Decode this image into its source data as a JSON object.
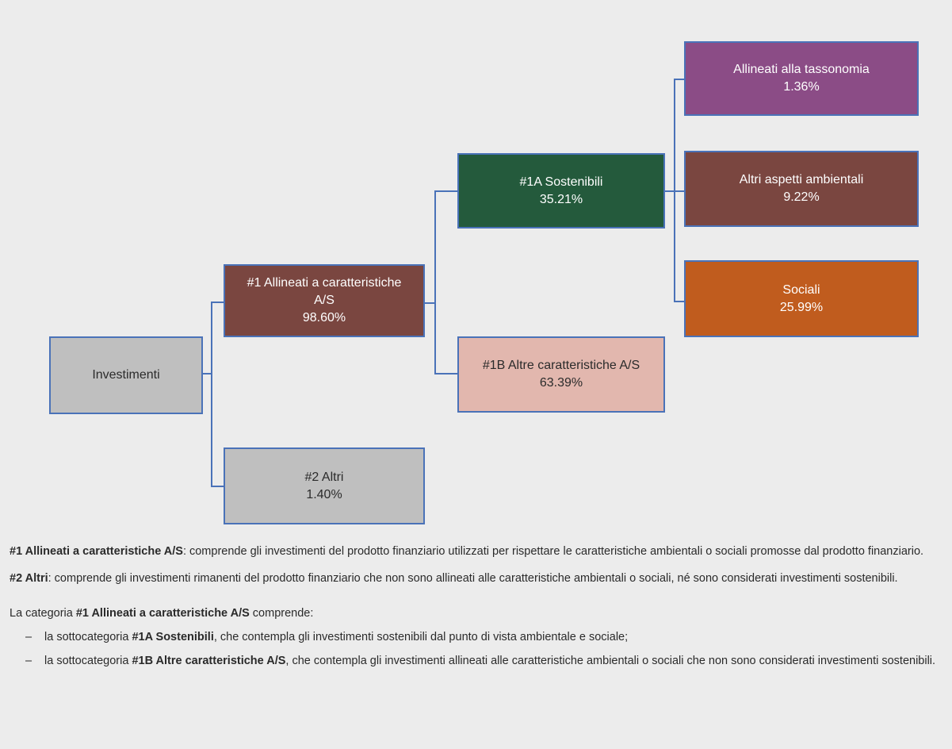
{
  "diagram": {
    "investimenti": {
      "label": "Investimenti"
    },
    "allineati": {
      "line1": "#1 Allineati a caratteristiche",
      "line2": "A/S",
      "value": "98.60%"
    },
    "altri": {
      "label": "#2 Altri",
      "value": "1.40%"
    },
    "sostenibili": {
      "label": "#1A Sostenibili",
      "value": "35.21%"
    },
    "altre_caratteristiche": {
      "label": "#1B Altre caratteristiche A/S",
      "value": "63.39%"
    },
    "tassonomia": {
      "label": "Allineati alla tassonomia",
      "value": "1.36%"
    },
    "altri_ambientali": {
      "label": "Altri aspetti ambientali",
      "value": "9.22%"
    },
    "sociali": {
      "label": "Sociali",
      "value": "25.99%"
    }
  },
  "colors": {
    "investimenti": "#bfbfbf",
    "allineati": "#7a4640",
    "altri": "#bfbfbf",
    "sostenibili": "#245a3c",
    "altre_caratteristiche": "#e2b7ae",
    "tassonomia": "#8b4c86",
    "altri_ambientali": "#7a4640",
    "sociali": "#c05c1e",
    "connector": "#4a72b8"
  },
  "notes": {
    "def1_bold": "#1 Allineati a caratteristiche A/S",
    "def1_text": ": comprende gli investimenti del prodotto finanziario utilizzati per rispettare le caratteristiche ambientali o sociali promosse dal prodotto finanziario.",
    "def2_bold": "#2 Altri",
    "def2_text": ": comprende gli investimenti rimanenti del prodotto finanziario che non sono allineati alle caratteristiche ambientali o sociali, né sono considerati investimenti sostenibili.",
    "category_prefix": "La categoria ",
    "category_bold": "#1 Allineati a caratteristiche A/S",
    "category_suffix": " comprende:",
    "bullet_marker": "–",
    "bullets": [
      {
        "prefix": "la sottocategoria ",
        "bold": "#1A Sostenibili",
        "suffix": ", che contempla gli investimenti sostenibili dal punto di vista ambientale e sociale;"
      },
      {
        "prefix": "la sottocategoria ",
        "bold": "#1B Altre caratteristiche A/S",
        "suffix": ", che contempla gli investimenti allineati alle caratteristiche ambientali o sociali che non sono considerati investimenti sostenibili."
      }
    ]
  }
}
